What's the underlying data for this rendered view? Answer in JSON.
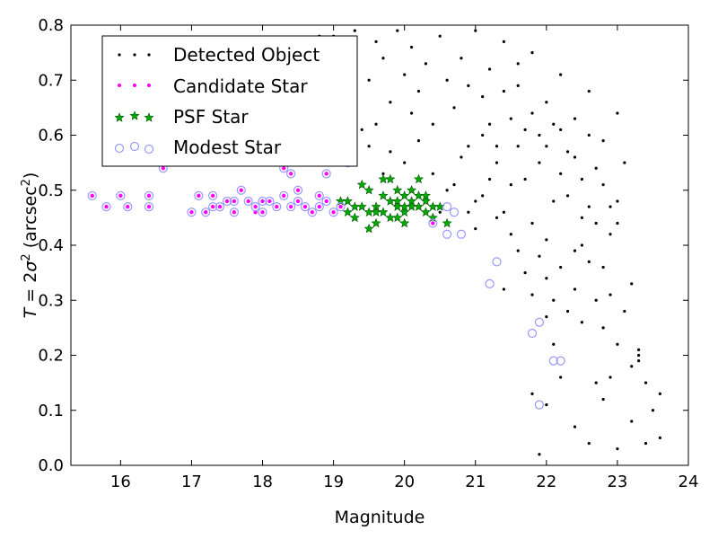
{
  "chart_data": {
    "type": "scatter",
    "xlabel": "Magnitude",
    "ylabel": "T = 2σ² (arcsec²)",
    "ylabel_parts": {
      "var": "T",
      "eq": " = 2",
      "sigma": "σ",
      "sup1": "2",
      "paren": " (arcsec",
      "sup2": "2",
      "close": ")"
    },
    "xlim": [
      15.3,
      24
    ],
    "ylim": [
      0.0,
      0.8
    ],
    "xticks": [
      16,
      17,
      18,
      19,
      20,
      21,
      22,
      23,
      24
    ],
    "yticks": [
      0.0,
      0.1,
      0.2,
      0.3,
      0.4,
      0.5,
      0.6,
      0.7,
      0.8
    ],
    "xtick_labels": [
      "16",
      "17",
      "18",
      "19",
      "20",
      "21",
      "22",
      "23",
      "24"
    ],
    "ytick_labels": [
      "0.0",
      "0.1",
      "0.2",
      "0.3",
      "0.4",
      "0.5",
      "0.6",
      "0.7",
      "0.8"
    ],
    "grid": false,
    "legend_position": "top-left",
    "series": [
      {
        "name": "Detected Object",
        "marker": "dot",
        "color": "#000000",
        "points": [
          [
            19.0,
            0.78
          ],
          [
            19.1,
            0.75
          ],
          [
            19.2,
            0.72
          ],
          [
            19.3,
            0.79
          ],
          [
            19.5,
            0.7
          ],
          [
            19.6,
            0.77
          ],
          [
            19.7,
            0.74
          ],
          [
            19.8,
            0.66
          ],
          [
            19.9,
            0.79
          ],
          [
            20.0,
            0.71
          ],
          [
            20.1,
            0.76
          ],
          [
            20.2,
            0.68
          ],
          [
            20.3,
            0.73
          ],
          [
            20.4,
            0.62
          ],
          [
            20.5,
            0.78
          ],
          [
            20.6,
            0.7
          ],
          [
            20.7,
            0.65
          ],
          [
            20.8,
            0.74
          ],
          [
            20.9,
            0.58
          ],
          [
            21.0,
            0.79
          ],
          [
            21.1,
            0.67
          ],
          [
            21.2,
            0.72
          ],
          [
            21.3,
            0.55
          ],
          [
            21.4,
            0.77
          ],
          [
            21.5,
            0.63
          ],
          [
            21.6,
            0.69
          ],
          [
            21.7,
            0.52
          ],
          [
            21.8,
            0.75
          ],
          [
            21.9,
            0.6
          ],
          [
            22.0,
            0.66
          ],
          [
            22.1,
            0.48
          ],
          [
            22.2,
            0.71
          ],
          [
            22.3,
            0.57
          ],
          [
            22.4,
            0.63
          ],
          [
            22.5,
            0.45
          ],
          [
            22.6,
            0.68
          ],
          [
            22.7,
            0.54
          ],
          [
            22.8,
            0.59
          ],
          [
            22.9,
            0.42
          ],
          [
            23.0,
            0.64
          ],
          [
            19.6,
            0.62
          ],
          [
            19.8,
            0.57
          ],
          [
            20.0,
            0.55
          ],
          [
            20.2,
            0.59
          ],
          [
            20.4,
            0.53
          ],
          [
            20.6,
            0.5
          ],
          [
            20.8,
            0.56
          ],
          [
            21.0,
            0.48
          ],
          [
            21.2,
            0.52
          ],
          [
            21.4,
            0.46
          ],
          [
            21.6,
            0.58
          ],
          [
            21.8,
            0.44
          ],
          [
            22.0,
            0.41
          ],
          [
            22.2,
            0.53
          ],
          [
            22.4,
            0.39
          ],
          [
            22.6,
            0.47
          ],
          [
            22.8,
            0.36
          ],
          [
            23.0,
            0.44
          ],
          [
            23.2,
            0.33
          ],
          [
            23.1,
            0.55
          ],
          [
            21.9,
            0.38
          ],
          [
            22.0,
            0.34
          ],
          [
            22.1,
            0.3
          ],
          [
            22.2,
            0.36
          ],
          [
            22.3,
            0.28
          ],
          [
            22.4,
            0.32
          ],
          [
            22.5,
            0.26
          ],
          [
            22.6,
            0.37
          ],
          [
            22.7,
            0.3
          ],
          [
            22.8,
            0.25
          ],
          [
            22.9,
            0.31
          ],
          [
            23.0,
            0.22
          ],
          [
            23.1,
            0.28
          ],
          [
            23.2,
            0.18
          ],
          [
            23.3,
            0.21
          ],
          [
            23.4,
            0.15
          ],
          [
            23.5,
            0.1
          ],
          [
            23.6,
            0.13
          ],
          [
            23.4,
            0.04
          ],
          [
            23.0,
            0.03
          ],
          [
            22.8,
            0.12
          ],
          [
            22.7,
            0.15
          ],
          [
            22.4,
            0.07
          ],
          [
            22.6,
            0.04
          ],
          [
            22.0,
            0.11
          ],
          [
            21.9,
            0.02
          ],
          [
            22.2,
            0.16
          ],
          [
            21.8,
            0.13
          ],
          [
            23.2,
            0.08
          ],
          [
            23.3,
            0.19
          ],
          [
            21.5,
            0.42
          ],
          [
            21.3,
            0.45
          ],
          [
            21.1,
            0.49
          ],
          [
            20.9,
            0.46
          ],
          [
            20.7,
            0.51
          ],
          [
            21.6,
            0.39
          ],
          [
            21.7,
            0.35
          ],
          [
            21.4,
            0.32
          ],
          [
            22.0,
            0.27
          ],
          [
            22.1,
            0.22
          ],
          [
            19.4,
            0.61
          ],
          [
            19.2,
            0.66
          ],
          [
            18.9,
            0.74
          ],
          [
            18.8,
            0.78
          ],
          [
            19.5,
            0.58
          ],
          [
            19.7,
            0.53
          ],
          [
            20.3,
            0.49
          ],
          [
            20.5,
            0.46
          ],
          [
            20.1,
            0.64
          ],
          [
            20.9,
            0.69
          ],
          [
            21.2,
            0.62
          ],
          [
            21.4,
            0.68
          ],
          [
            21.6,
            0.73
          ],
          [
            21.8,
            0.64
          ],
          [
            22.0,
            0.58
          ],
          [
            22.2,
            0.61
          ],
          [
            22.4,
            0.56
          ],
          [
            22.6,
            0.6
          ],
          [
            22.8,
            0.51
          ],
          [
            23.0,
            0.48
          ],
          [
            21.7,
            0.61
          ],
          [
            21.9,
            0.55
          ],
          [
            22.1,
            0.62
          ],
          [
            22.3,
            0.49
          ],
          [
            22.5,
            0.52
          ],
          [
            22.7,
            0.44
          ],
          [
            22.9,
            0.47
          ],
          [
            21.5,
            0.51
          ],
          [
            21.3,
            0.58
          ],
          [
            21.1,
            0.6
          ],
          [
            18.3,
            0.54
          ],
          [
            18.6,
            0.59
          ],
          [
            16.6,
            0.54
          ],
          [
            23.6,
            0.05
          ],
          [
            23.3,
            0.2
          ],
          [
            22.5,
            0.4
          ],
          [
            21.0,
            0.43
          ],
          [
            20.6,
            0.44
          ],
          [
            21.8,
            0.31
          ],
          [
            22.9,
            0.16
          ]
        ]
      },
      {
        "name": "Candidate Star",
        "marker": "small-circle",
        "color": "#ff00ff",
        "points": [
          [
            15.6,
            0.49
          ],
          [
            15.8,
            0.47
          ],
          [
            16.0,
            0.49
          ],
          [
            16.1,
            0.47
          ],
          [
            16.4,
            0.49
          ],
          [
            16.4,
            0.47
          ],
          [
            17.0,
            0.46
          ],
          [
            17.1,
            0.49
          ],
          [
            17.2,
            0.46
          ],
          [
            17.3,
            0.49
          ],
          [
            17.4,
            0.47
          ],
          [
            17.5,
            0.48
          ],
          [
            17.6,
            0.46
          ],
          [
            17.7,
            0.5
          ],
          [
            17.8,
            0.48
          ],
          [
            17.9,
            0.47
          ],
          [
            18.0,
            0.46
          ],
          [
            18.1,
            0.48
          ],
          [
            18.2,
            0.47
          ],
          [
            18.3,
            0.49
          ],
          [
            18.4,
            0.47
          ],
          [
            18.5,
            0.48
          ],
          [
            18.6,
            0.47
          ],
          [
            18.7,
            0.46
          ],
          [
            18.8,
            0.47
          ],
          [
            18.9,
            0.48
          ],
          [
            19.0,
            0.46
          ],
          [
            19.1,
            0.47
          ],
          [
            18.9,
            0.53
          ],
          [
            18.4,
            0.53
          ],
          [
            17.3,
            0.47
          ],
          [
            17.6,
            0.48
          ],
          [
            18.0,
            0.48
          ],
          [
            18.5,
            0.5
          ],
          [
            18.8,
            0.49
          ],
          [
            19.2,
            0.55
          ],
          [
            16.6,
            0.54
          ],
          [
            18.3,
            0.54
          ],
          [
            20.4,
            0.44
          ],
          [
            17.9,
            0.46
          ]
        ]
      },
      {
        "name": "PSF Star",
        "marker": "star",
        "color": "#00aa00",
        "points": [
          [
            19.1,
            0.48
          ],
          [
            19.2,
            0.46
          ],
          [
            19.3,
            0.45
          ],
          [
            19.4,
            0.47
          ],
          [
            19.5,
            0.5
          ],
          [
            19.5,
            0.46
          ],
          [
            19.6,
            0.47
          ],
          [
            19.7,
            0.49
          ],
          [
            19.7,
            0.46
          ],
          [
            19.8,
            0.48
          ],
          [
            19.8,
            0.52
          ],
          [
            19.9,
            0.47
          ],
          [
            19.9,
            0.45
          ],
          [
            20.0,
            0.49
          ],
          [
            20.0,
            0.46
          ],
          [
            20.1,
            0.48
          ],
          [
            20.1,
            0.5
          ],
          [
            20.2,
            0.47
          ],
          [
            20.2,
            0.49
          ],
          [
            20.3,
            0.48
          ],
          [
            20.3,
            0.46
          ],
          [
            20.4,
            0.45
          ],
          [
            20.5,
            0.47
          ],
          [
            20.6,
            0.44
          ],
          [
            19.4,
            0.51
          ],
          [
            19.6,
            0.44
          ],
          [
            19.3,
            0.47
          ],
          [
            19.9,
            0.5
          ],
          [
            20.0,
            0.44
          ],
          [
            20.2,
            0.52
          ],
          [
            19.5,
            0.43
          ],
          [
            19.7,
            0.52
          ],
          [
            20.1,
            0.47
          ],
          [
            19.8,
            0.45
          ],
          [
            20.0,
            0.47
          ],
          [
            19.6,
            0.46
          ],
          [
            20.3,
            0.49
          ],
          [
            19.2,
            0.48
          ],
          [
            20.4,
            0.47
          ],
          [
            19.9,
            0.48
          ]
        ]
      },
      {
        "name": "Modest Star",
        "marker": "open-circle",
        "color": "#9999ff",
        "points": [
          [
            15.6,
            0.49
          ],
          [
            15.8,
            0.47
          ],
          [
            16.0,
            0.49
          ],
          [
            16.1,
            0.47
          ],
          [
            16.4,
            0.49
          ],
          [
            16.4,
            0.47
          ],
          [
            17.0,
            0.46
          ],
          [
            17.1,
            0.49
          ],
          [
            17.2,
            0.46
          ],
          [
            17.3,
            0.49
          ],
          [
            17.4,
            0.47
          ],
          [
            17.5,
            0.48
          ],
          [
            17.6,
            0.46
          ],
          [
            17.7,
            0.5
          ],
          [
            17.8,
            0.48
          ],
          [
            17.9,
            0.47
          ],
          [
            18.0,
            0.46
          ],
          [
            18.1,
            0.48
          ],
          [
            18.2,
            0.47
          ],
          [
            18.3,
            0.49
          ],
          [
            18.4,
            0.47
          ],
          [
            18.5,
            0.48
          ],
          [
            18.6,
            0.47
          ],
          [
            18.7,
            0.46
          ],
          [
            18.8,
            0.47
          ],
          [
            18.9,
            0.48
          ],
          [
            19.0,
            0.46
          ],
          [
            19.1,
            0.47
          ],
          [
            18.9,
            0.53
          ],
          [
            18.4,
            0.53
          ],
          [
            20.6,
            0.47
          ],
          [
            20.7,
            0.46
          ],
          [
            20.6,
            0.42
          ],
          [
            20.8,
            0.42
          ],
          [
            21.2,
            0.33
          ],
          [
            21.3,
            0.37
          ],
          [
            21.8,
            0.24
          ],
          [
            21.9,
            0.26
          ],
          [
            22.1,
            0.19
          ],
          [
            22.2,
            0.19
          ],
          [
            21.9,
            0.11
          ],
          [
            19.2,
            0.55
          ],
          [
            17.3,
            0.47
          ],
          [
            17.6,
            0.48
          ],
          [
            18.0,
            0.48
          ],
          [
            18.5,
            0.5
          ],
          [
            18.8,
            0.49
          ],
          [
            16.6,
            0.54
          ],
          [
            18.3,
            0.54
          ],
          [
            20.4,
            0.44
          ]
        ]
      }
    ]
  }
}
